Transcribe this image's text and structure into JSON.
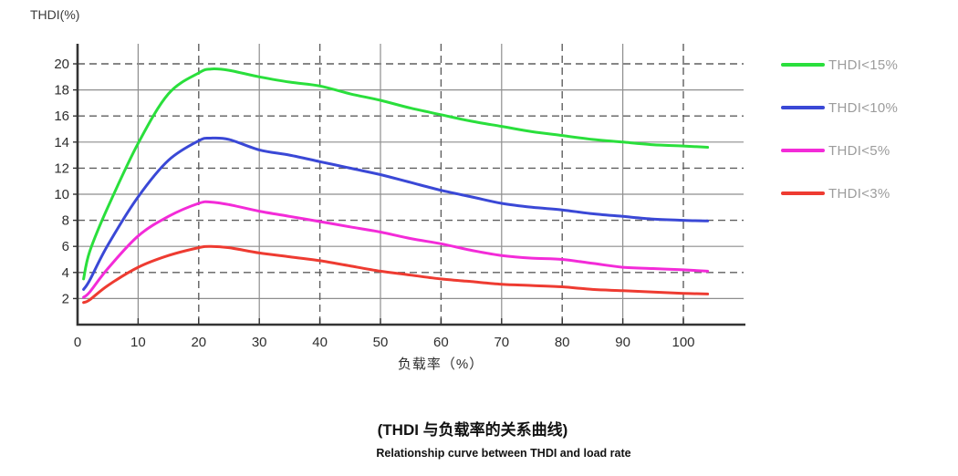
{
  "captions": {
    "zh": "(THDI 与负载率的关系曲线)",
    "en": "Relationship curve between THDI and load rate"
  },
  "chart_data": {
    "type": "line",
    "title": "(THDI 与负载率的关系曲线)",
    "subtitle": "Relationship curve between THDI and load rate",
    "xlabel": "负载率（%）",
    "ylabel": "THDI(%)",
    "xlim": [
      0,
      110
    ],
    "ylim": [
      0,
      21.5
    ],
    "x_ticks": [
      0,
      10,
      20,
      30,
      40,
      50,
      60,
      70,
      80,
      90,
      100
    ],
    "y_ticks": [
      2,
      4,
      6,
      8,
      10,
      12,
      14,
      16,
      18,
      20
    ],
    "grid": {
      "solid_x": [
        10,
        30,
        50,
        70,
        90
      ],
      "dashed_x": [
        20,
        40,
        60,
        80,
        100
      ],
      "solid_y": [
        2,
        6,
        10,
        14,
        18
      ],
      "dashed_y": [
        4,
        8,
        12,
        16,
        20
      ]
    },
    "legend_position": "right",
    "x": [
      1,
      2,
      5,
      10,
      15,
      20,
      22,
      25,
      30,
      35,
      40,
      45,
      50,
      55,
      60,
      65,
      70,
      75,
      80,
      85,
      90,
      95,
      100,
      104
    ],
    "series": [
      {
        "name": "THDI<15%",
        "color": "#2adf3c",
        "values": [
          3.5,
          5.6,
          9.0,
          13.9,
          17.7,
          19.3,
          19.6,
          19.5,
          19.0,
          18.6,
          18.3,
          17.7,
          17.2,
          16.6,
          16.1,
          15.6,
          15.2,
          14.8,
          14.5,
          14.2,
          14.0,
          13.8,
          13.7,
          13.6
        ]
      },
      {
        "name": "THDI<10%",
        "color": "#3a48d6",
        "values": [
          2.7,
          3.4,
          6.1,
          9.8,
          12.6,
          14.1,
          14.3,
          14.2,
          13.4,
          13.0,
          12.5,
          12.0,
          11.5,
          10.9,
          10.3,
          9.8,
          9.3,
          9.0,
          8.8,
          8.5,
          8.3,
          8.1,
          8.0,
          7.95
        ]
      },
      {
        "name": "THDI<5%",
        "color": "#f32bd8",
        "values": [
          2.1,
          2.5,
          4.3,
          6.8,
          8.3,
          9.3,
          9.4,
          9.2,
          8.7,
          8.3,
          7.9,
          7.5,
          7.1,
          6.6,
          6.2,
          5.7,
          5.3,
          5.1,
          5.0,
          4.7,
          4.4,
          4.3,
          4.2,
          4.1
        ]
      },
      {
        "name": "THDI<3%",
        "color": "#ee3b31",
        "values": [
          1.7,
          1.9,
          3.0,
          4.4,
          5.3,
          5.9,
          6.0,
          5.9,
          5.5,
          5.2,
          4.9,
          4.5,
          4.1,
          3.8,
          3.5,
          3.3,
          3.1,
          3.0,
          2.9,
          2.7,
          2.6,
          2.5,
          2.4,
          2.35
        ]
      }
    ],
    "colors": {
      "axis": "#333333",
      "grid_solid": "#8e8e8e",
      "grid_dashed": "#5f5f5f",
      "tick_text": "#2e2e2e",
      "legend_text": "#9c9c9c"
    }
  }
}
